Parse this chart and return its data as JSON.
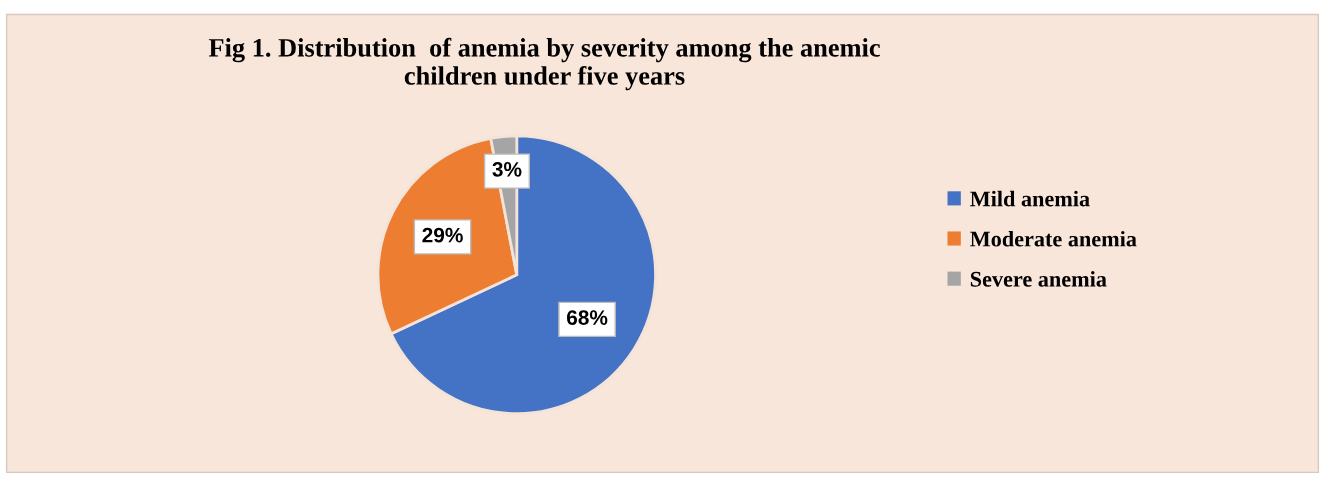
{
  "chart_data": {
    "type": "pie",
    "title": "Fig 1. Distribution  of anemia by severity among the anemic\nchildren under five years",
    "categories": [
      "Mild anemia",
      "Moderate anemia",
      "Severe anemia"
    ],
    "values": [
      68,
      29,
      3
    ],
    "value_labels": [
      "68%",
      "29%",
      "3%"
    ],
    "colors": [
      "#4472c4",
      "#ed7d31",
      "#a5a5a5"
    ],
    "legend": "right"
  }
}
